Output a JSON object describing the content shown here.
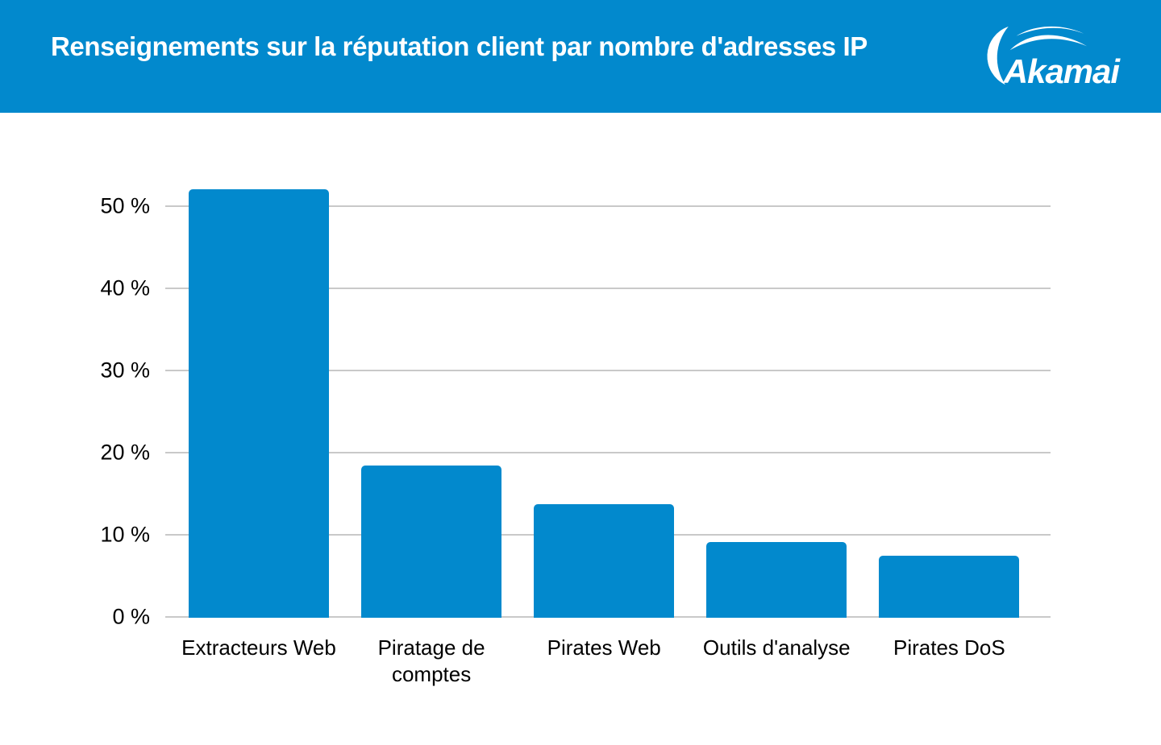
{
  "header": {
    "title": "Renseignements sur la réputation client par nombre d'adresses IP",
    "logo": {
      "brand": "Akamai"
    }
  },
  "chart_data": {
    "type": "bar",
    "title": "Renseignements sur la réputation client par nombre d'adresses IP",
    "categories": [
      "Extracteurs Web",
      "Piratage de comptes",
      "Pirates Web",
      "Outils d'analyse",
      "Pirates DoS"
    ],
    "values": [
      52,
      18.3,
      13.6,
      9,
      7.4
    ],
    "unit": "%",
    "xlabel": "",
    "ylabel": "",
    "ylim": [
      0,
      55
    ],
    "yticks": [
      0,
      10,
      20,
      30,
      40,
      50
    ],
    "ytick_labels": [
      "0 %",
      "10 %",
      "20 %",
      "30 %",
      "40 %",
      "50 %"
    ],
    "grid": true,
    "legend": false,
    "bar_color": "#0289CD"
  },
  "colors": {
    "header_bg": "#0289CD",
    "bar": "#0289CD",
    "gridline": "#C9C9C9",
    "axis_text": "#000000",
    "title_text": "#FFFFFF",
    "background": "#FFFFFF"
  }
}
